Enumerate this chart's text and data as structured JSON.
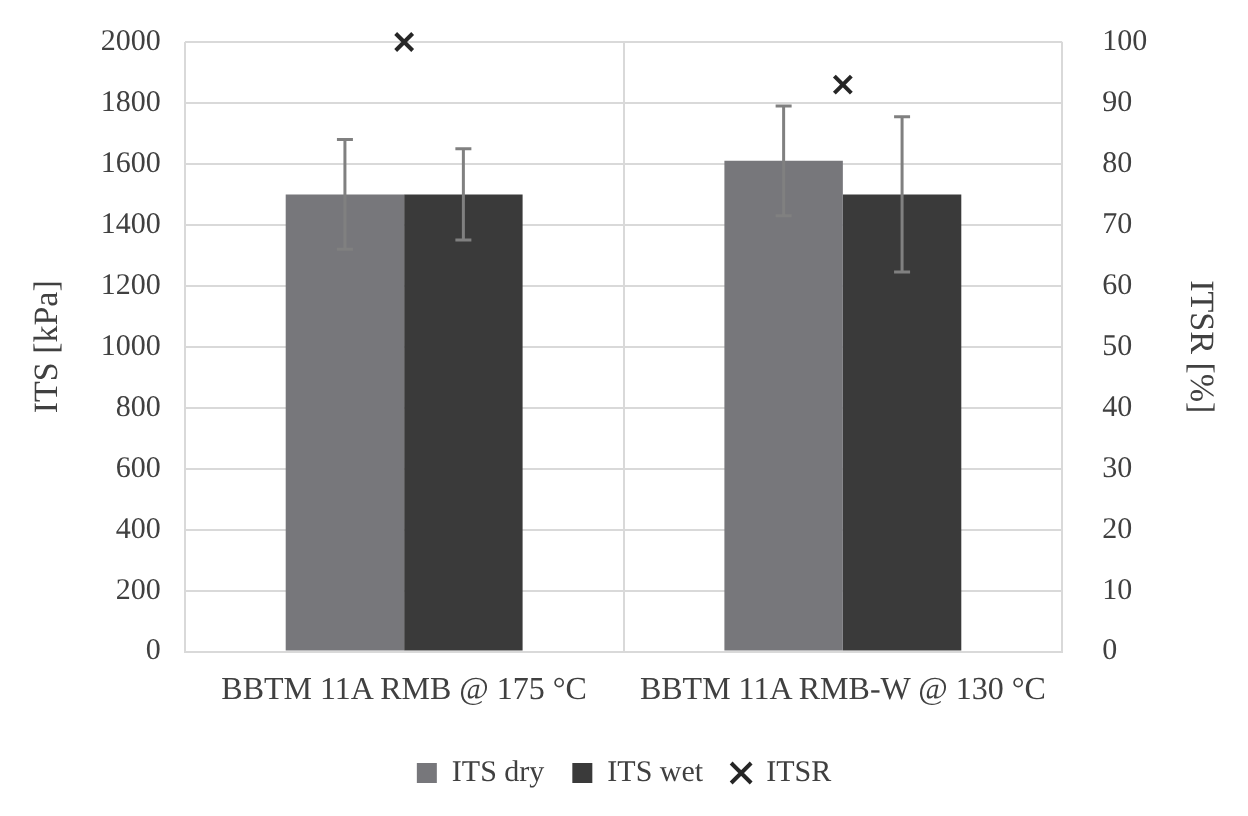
{
  "chart_data": {
    "type": "bar",
    "categories": [
      "BBTM 11A RMB @ 175 °C",
      "BBTM 11A RMB-W @ 130 °C"
    ],
    "ylabel": "ITS [kPa]",
    "y2label": "ITSR [%]",
    "series": [
      {
        "name": "ITS dry",
        "color": "#77777b",
        "values": [
          1500,
          1610
        ],
        "errors": [
          180,
          180
        ]
      },
      {
        "name": "ITS wet",
        "color": "#3a3a3a",
        "values": [
          1500,
          1500
        ],
        "errors": [
          150,
          255
        ]
      },
      {
        "name": "ITSR",
        "type": "scatter",
        "axis": "y2",
        "color": "#262626",
        "x": [
          "BBTM 11A RMB @ 175 °C",
          "BBTM 11A RMB-W @ 130 °C"
        ],
        "values": [
          100,
          93
        ]
      }
    ],
    "ylim": [
      0,
      2000
    ],
    "yticks": [
      0,
      200,
      400,
      600,
      800,
      1000,
      1200,
      1400,
      1600,
      1800,
      2000
    ],
    "y2lim": [
      0,
      100
    ],
    "y2ticks": [
      0,
      10,
      20,
      30,
      40,
      50,
      60,
      70,
      80,
      90,
      100
    ],
    "grid": true,
    "legend": "bottom",
    "marker": "cross"
  }
}
